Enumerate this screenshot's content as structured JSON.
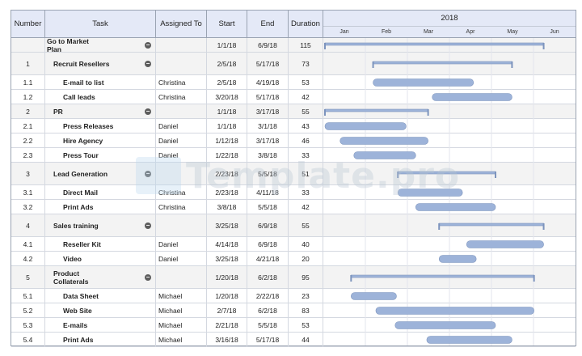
{
  "columns": {
    "number": "Number",
    "task": "Task",
    "assigned": "Assigned To",
    "start": "Start",
    "end": "End",
    "duration": "Duration"
  },
  "watermark": "Template.pro",
  "chart_data": {
    "type": "gantt",
    "year": "2018",
    "months": [
      "Jan",
      "Feb",
      "Mar",
      "Apr",
      "May",
      "Jun"
    ],
    "tasks": [
      {
        "number": "",
        "task": "Go to Market Plan",
        "assigned": "",
        "start": "1/1/18",
        "end": "6/9/18",
        "duration": "115",
        "summary": true,
        "level": 0
      },
      {
        "number": "1",
        "task": "Recruit Resellers",
        "assigned": "",
        "start": "2/5/18",
        "end": "5/17/18",
        "duration": "73",
        "summary": true,
        "level": 1
      },
      {
        "number": "1.1",
        "task": "E-mail to list",
        "assigned": "Christina",
        "start": "2/5/18",
        "end": "4/19/18",
        "duration": "53",
        "summary": false,
        "level": 2
      },
      {
        "number": "1.2",
        "task": "Call leads",
        "assigned": "Christina",
        "start": "3/20/18",
        "end": "5/17/18",
        "duration": "42",
        "summary": false,
        "level": 2
      },
      {
        "number": "2",
        "task": "PR",
        "assigned": "",
        "start": "1/1/18",
        "end": "3/17/18",
        "duration": "55",
        "summary": true,
        "level": 1
      },
      {
        "number": "2.1",
        "task": "Press Releases",
        "assigned": "Daniel",
        "start": "1/1/18",
        "end": "3/1/18",
        "duration": "43",
        "summary": false,
        "level": 2
      },
      {
        "number": "2.2",
        "task": "Hire Agency",
        "assigned": "Daniel",
        "start": "1/12/18",
        "end": "3/17/18",
        "duration": "46",
        "summary": false,
        "level": 2
      },
      {
        "number": "2.3",
        "task": "Press Tour",
        "assigned": "Daniel",
        "start": "1/22/18",
        "end": "3/8/18",
        "duration": "33",
        "summary": false,
        "level": 2
      },
      {
        "number": "3",
        "task": "Lead Generation",
        "assigned": "",
        "start": "2/23/18",
        "end": "5/5/18",
        "duration": "51",
        "summary": true,
        "level": 1
      },
      {
        "number": "3.1",
        "task": "Direct Mail",
        "assigned": "Christina",
        "start": "2/23/18",
        "end": "4/11/18",
        "duration": "33",
        "summary": false,
        "level": 2
      },
      {
        "number": "3.2",
        "task": "Print Ads",
        "assigned": "Christina",
        "start": "3/8/18",
        "end": "5/5/18",
        "duration": "42",
        "summary": false,
        "level": 2
      },
      {
        "number": "4",
        "task": "Sales training",
        "assigned": "",
        "start": "3/25/18",
        "end": "6/9/18",
        "duration": "55",
        "summary": true,
        "level": 1
      },
      {
        "number": "4.1",
        "task": "Reseller Kit",
        "assigned": "Daniel",
        "start": "4/14/18",
        "end": "6/9/18",
        "duration": "40",
        "summary": false,
        "level": 2
      },
      {
        "number": "4.2",
        "task": "Video",
        "assigned": "Daniel",
        "start": "3/25/18",
        "end": "4/21/18",
        "duration": "20",
        "summary": false,
        "level": 2
      },
      {
        "number": "5",
        "task": "Product Collaterals",
        "assigned": "",
        "start": "1/20/18",
        "end": "6/2/18",
        "duration": "95",
        "summary": true,
        "level": 1
      },
      {
        "number": "5.1",
        "task": "Data Sheet",
        "assigned": "Michael",
        "start": "1/20/18",
        "end": "2/22/18",
        "duration": "23",
        "summary": false,
        "level": 2
      },
      {
        "number": "5.2",
        "task": "Web Site",
        "assigned": "Michael",
        "start": "2/7/18",
        "end": "6/2/18",
        "duration": "83",
        "summary": false,
        "level": 2
      },
      {
        "number": "5.3",
        "task": "E-mails",
        "assigned": "Michael",
        "start": "2/21/18",
        "end": "5/5/18",
        "duration": "53",
        "summary": false,
        "level": 2
      },
      {
        "number": "5.4",
        "task": "Print Ads",
        "assigned": "Michael",
        "start": "3/16/18",
        "end": "5/17/18",
        "duration": "44",
        "summary": false,
        "level": 2
      }
    ],
    "colors": {
      "bar": "#9db3d9",
      "bar_border": "#7d94bd",
      "header": "#e4e9f7",
      "grid": "#d4d8e0"
    }
  }
}
